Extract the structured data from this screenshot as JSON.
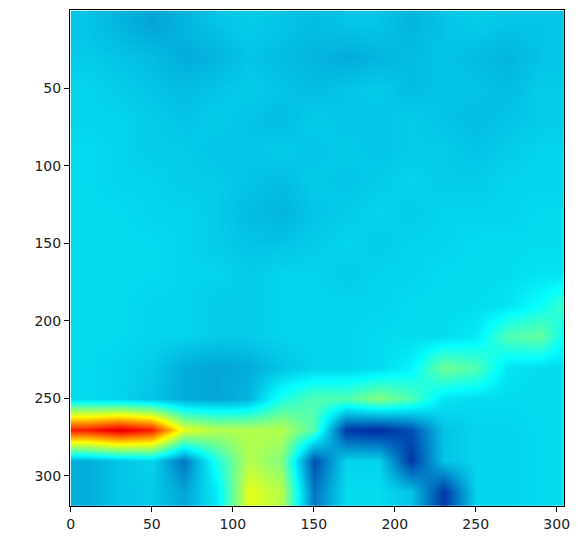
{
  "chart_data": {
    "type": "heatmap",
    "color": "Jet",
    "x": [
      10,
      30,
      50,
      70,
      90,
      110,
      130,
      150,
      170,
      190,
      210,
      230,
      250,
      270,
      290,
      310
    ],
    "y": [
      10,
      30,
      50,
      70,
      90,
      110,
      130,
      150,
      170,
      190,
      210,
      230,
      250,
      270,
      290,
      310
    ],
    "values": [
      [
        0.3,
        0.28,
        0.26,
        0.28,
        0.3,
        0.31,
        0.3,
        0.29,
        0.3,
        0.3,
        0.28,
        0.3,
        0.31,
        0.3,
        0.3,
        0.3
      ],
      [
        0.31,
        0.3,
        0.29,
        0.27,
        0.28,
        0.3,
        0.29,
        0.28,
        0.27,
        0.28,
        0.29,
        0.3,
        0.29,
        0.28,
        0.3,
        0.3
      ],
      [
        0.32,
        0.31,
        0.3,
        0.29,
        0.3,
        0.31,
        0.3,
        0.29,
        0.3,
        0.31,
        0.29,
        0.3,
        0.3,
        0.29,
        0.31,
        0.31
      ],
      [
        0.32,
        0.32,
        0.31,
        0.3,
        0.31,
        0.3,
        0.29,
        0.31,
        0.3,
        0.3,
        0.31,
        0.3,
        0.29,
        0.3,
        0.31,
        0.31
      ],
      [
        0.33,
        0.32,
        0.31,
        0.31,
        0.3,
        0.3,
        0.31,
        0.3,
        0.31,
        0.3,
        0.31,
        0.31,
        0.3,
        0.31,
        0.32,
        0.32
      ],
      [
        0.33,
        0.32,
        0.32,
        0.31,
        0.31,
        0.3,
        0.29,
        0.31,
        0.3,
        0.31,
        0.32,
        0.31,
        0.31,
        0.32,
        0.32,
        0.32
      ],
      [
        0.33,
        0.33,
        0.32,
        0.32,
        0.31,
        0.29,
        0.28,
        0.3,
        0.31,
        0.32,
        0.31,
        0.32,
        0.32,
        0.32,
        0.33,
        0.33
      ],
      [
        0.33,
        0.33,
        0.33,
        0.32,
        0.31,
        0.3,
        0.3,
        0.31,
        0.32,
        0.31,
        0.32,
        0.32,
        0.33,
        0.33,
        0.33,
        0.33
      ],
      [
        0.33,
        0.33,
        0.33,
        0.32,
        0.32,
        0.31,
        0.32,
        0.32,
        0.31,
        0.32,
        0.32,
        0.33,
        0.33,
        0.33,
        0.34,
        0.34
      ],
      [
        0.33,
        0.33,
        0.32,
        0.32,
        0.31,
        0.31,
        0.32,
        0.32,
        0.32,
        0.32,
        0.33,
        0.33,
        0.33,
        0.34,
        0.38,
        0.45
      ],
      [
        0.33,
        0.33,
        0.32,
        0.32,
        0.31,
        0.31,
        0.32,
        0.32,
        0.32,
        0.33,
        0.33,
        0.33,
        0.35,
        0.45,
        0.47,
        0.34
      ],
      [
        0.33,
        0.32,
        0.31,
        0.27,
        0.26,
        0.27,
        0.3,
        0.32,
        0.32,
        0.33,
        0.36,
        0.48,
        0.45,
        0.34,
        0.33,
        0.33
      ],
      [
        0.33,
        0.32,
        0.3,
        0.27,
        0.26,
        0.28,
        0.4,
        0.45,
        0.45,
        0.5,
        0.45,
        0.34,
        0.33,
        0.33,
        0.33,
        0.33
      ],
      [
        0.85,
        0.9,
        0.85,
        0.6,
        0.55,
        0.55,
        0.55,
        0.45,
        0.12,
        0.1,
        0.15,
        0.3,
        0.32,
        0.32,
        0.33,
        0.33
      ],
      [
        0.27,
        0.3,
        0.32,
        0.2,
        0.4,
        0.55,
        0.5,
        0.15,
        0.32,
        0.32,
        0.12,
        0.3,
        0.32,
        0.32,
        0.33,
        0.33
      ],
      [
        0.27,
        0.3,
        0.31,
        0.26,
        0.35,
        0.6,
        0.55,
        0.2,
        0.33,
        0.33,
        0.3,
        0.12,
        0.32,
        0.32,
        0.33,
        0.33
      ]
    ],
    "zlim": [
      0,
      1
    ],
    "xlim": [
      -0.5,
      304.5
    ],
    "ylim": [
      319.5,
      -0.5
    ],
    "xticks": [
      0,
      50,
      100,
      150,
      200,
      250,
      300
    ],
    "yticks": [
      50,
      100,
      150,
      200,
      250,
      300
    ]
  }
}
